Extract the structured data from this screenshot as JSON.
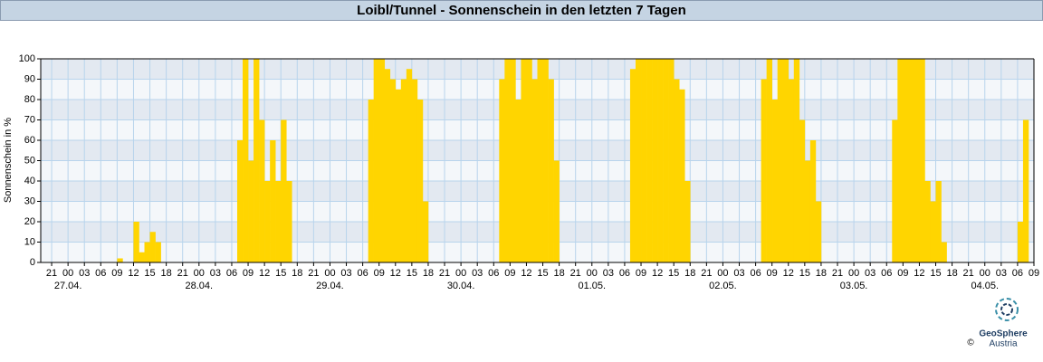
{
  "header": {
    "title": "Loibl/Tunnel - Sonnenschein in den letzten 7 Tagen"
  },
  "logo": {
    "name": "GeoSphere",
    "subtitle": "Austria",
    "copyright": "©"
  },
  "chart_data": {
    "type": "bar",
    "y_label": "Sonnenschein in %",
    "color": "#ffd500",
    "ylim": [
      0,
      100
    ],
    "yticks": [
      0,
      10,
      20,
      30,
      40,
      50,
      60,
      70,
      80,
      90,
      100
    ],
    "grid": true,
    "categories": [
      null,
      null,
      "21",
      null,
      null,
      "00",
      null,
      null,
      "03",
      null,
      null,
      "06",
      null,
      null,
      "09",
      null,
      null,
      "12",
      null,
      null,
      "15",
      null,
      null,
      "18",
      null,
      null,
      "21",
      null,
      null,
      "00",
      null,
      null,
      "03",
      null,
      null,
      "06",
      null,
      null,
      "09",
      null,
      null,
      "12",
      null,
      null,
      "15",
      null,
      null,
      "18",
      null,
      null,
      "21",
      null,
      null,
      "00",
      null,
      null,
      "03",
      null,
      null,
      "06",
      null,
      null,
      "09",
      null,
      null,
      "12",
      null,
      null,
      "15",
      null,
      null,
      "18",
      null,
      null,
      "21",
      null,
      null,
      "00",
      null,
      null,
      "03",
      null,
      null,
      "06",
      null,
      null,
      "09",
      null,
      null,
      "12",
      null,
      null,
      "15",
      null,
      null,
      "18",
      null,
      null,
      "21",
      null,
      null,
      "00",
      null,
      null,
      "03",
      null,
      null,
      "06",
      null,
      null,
      "09",
      null,
      null,
      "12",
      null,
      null,
      "15",
      null,
      null,
      "18",
      null,
      null,
      "21",
      null,
      null,
      "00",
      null,
      null,
      "03",
      null,
      null,
      "06",
      null,
      null,
      "09",
      null,
      null,
      "12",
      null,
      null,
      "15",
      null,
      null,
      "18",
      null,
      null,
      "21",
      null,
      null,
      "00",
      null,
      null,
      "03",
      null,
      null,
      "06",
      null,
      null,
      "09",
      null,
      null,
      "12",
      null,
      null,
      "15",
      null,
      null,
      "18",
      null,
      null,
      "21",
      null,
      null,
      "00",
      null,
      null,
      "03",
      null,
      null,
      "06",
      null,
      null,
      "09"
    ],
    "dates": [
      null,
      null,
      null,
      null,
      null,
      "27.04.",
      null,
      null,
      null,
      null,
      null,
      null,
      null,
      null,
      null,
      null,
      null,
      null,
      null,
      null,
      null,
      null,
      null,
      null,
      null,
      null,
      null,
      null,
      null,
      "28.04.",
      null,
      null,
      null,
      null,
      null,
      null,
      null,
      null,
      null,
      null,
      null,
      null,
      null,
      null,
      null,
      null,
      null,
      null,
      null,
      null,
      null,
      null,
      null,
      "29.04.",
      null,
      null,
      null,
      null,
      null,
      null,
      null,
      null,
      null,
      null,
      null,
      null,
      null,
      null,
      null,
      null,
      null,
      null,
      null,
      null,
      null,
      null,
      null,
      "30.04.",
      null,
      null,
      null,
      null,
      null,
      null,
      null,
      null,
      null,
      null,
      null,
      null,
      null,
      null,
      null,
      null,
      null,
      null,
      null,
      null,
      null,
      null,
      null,
      "01.05.",
      null,
      null,
      null,
      null,
      null,
      null,
      null,
      null,
      null,
      null,
      null,
      null,
      null,
      null,
      null,
      null,
      null,
      null,
      null,
      null,
      null,
      null,
      null,
      "02.05.",
      null,
      null,
      null,
      null,
      null,
      null,
      null,
      null,
      null,
      null,
      null,
      null,
      null,
      null,
      null,
      null,
      null,
      null,
      null,
      null,
      null,
      null,
      null,
      "03.05.",
      null,
      null,
      null,
      null,
      null,
      null,
      null,
      null,
      null,
      null,
      null,
      null,
      null,
      null,
      null,
      null,
      null,
      null,
      null,
      null,
      null,
      null,
      null,
      "04.05.",
      null,
      null,
      null,
      null,
      null,
      null,
      null,
      null,
      null
    ],
    "values": [
      0,
      0,
      0,
      0,
      0,
      0,
      0,
      0,
      0,
      0,
      0,
      0,
      0,
      0,
      2,
      0,
      0,
      20,
      5,
      10,
      15,
      10,
      0,
      0,
      0,
      0,
      0,
      0,
      0,
      0,
      0,
      0,
      0,
      0,
      0,
      0,
      60,
      100,
      50,
      100,
      70,
      40,
      60,
      40,
      70,
      40,
      0,
      0,
      0,
      0,
      0,
      0,
      0,
      0,
      0,
      0,
      0,
      0,
      0,
      0,
      80,
      100,
      100,
      95,
      90,
      85,
      90,
      95,
      90,
      80,
      30,
      0,
      0,
      0,
      0,
      0,
      0,
      0,
      0,
      0,
      0,
      0,
      0,
      0,
      90,
      100,
      100,
      80,
      100,
      100,
      90,
      100,
      100,
      90,
      50,
      0,
      0,
      0,
      0,
      0,
      0,
      0,
      0,
      0,
      0,
      0,
      0,
      0,
      95,
      100,
      100,
      100,
      100,
      100,
      100,
      100,
      90,
      85,
      40,
      0,
      0,
      0,
      0,
      0,
      0,
      0,
      0,
      0,
      0,
      0,
      0,
      0,
      90,
      100,
      80,
      100,
      100,
      90,
      100,
      70,
      50,
      60,
      30,
      0,
      0,
      0,
      0,
      0,
      0,
      0,
      0,
      0,
      0,
      0,
      0,
      0,
      70,
      100,
      100,
      100,
      100,
      100,
      40,
      30,
      40,
      10,
      0,
      0,
      0,
      0,
      0,
      0,
      0,
      0,
      0,
      0,
      0,
      0,
      0,
      20,
      70,
      0,
      null
    ]
  }
}
